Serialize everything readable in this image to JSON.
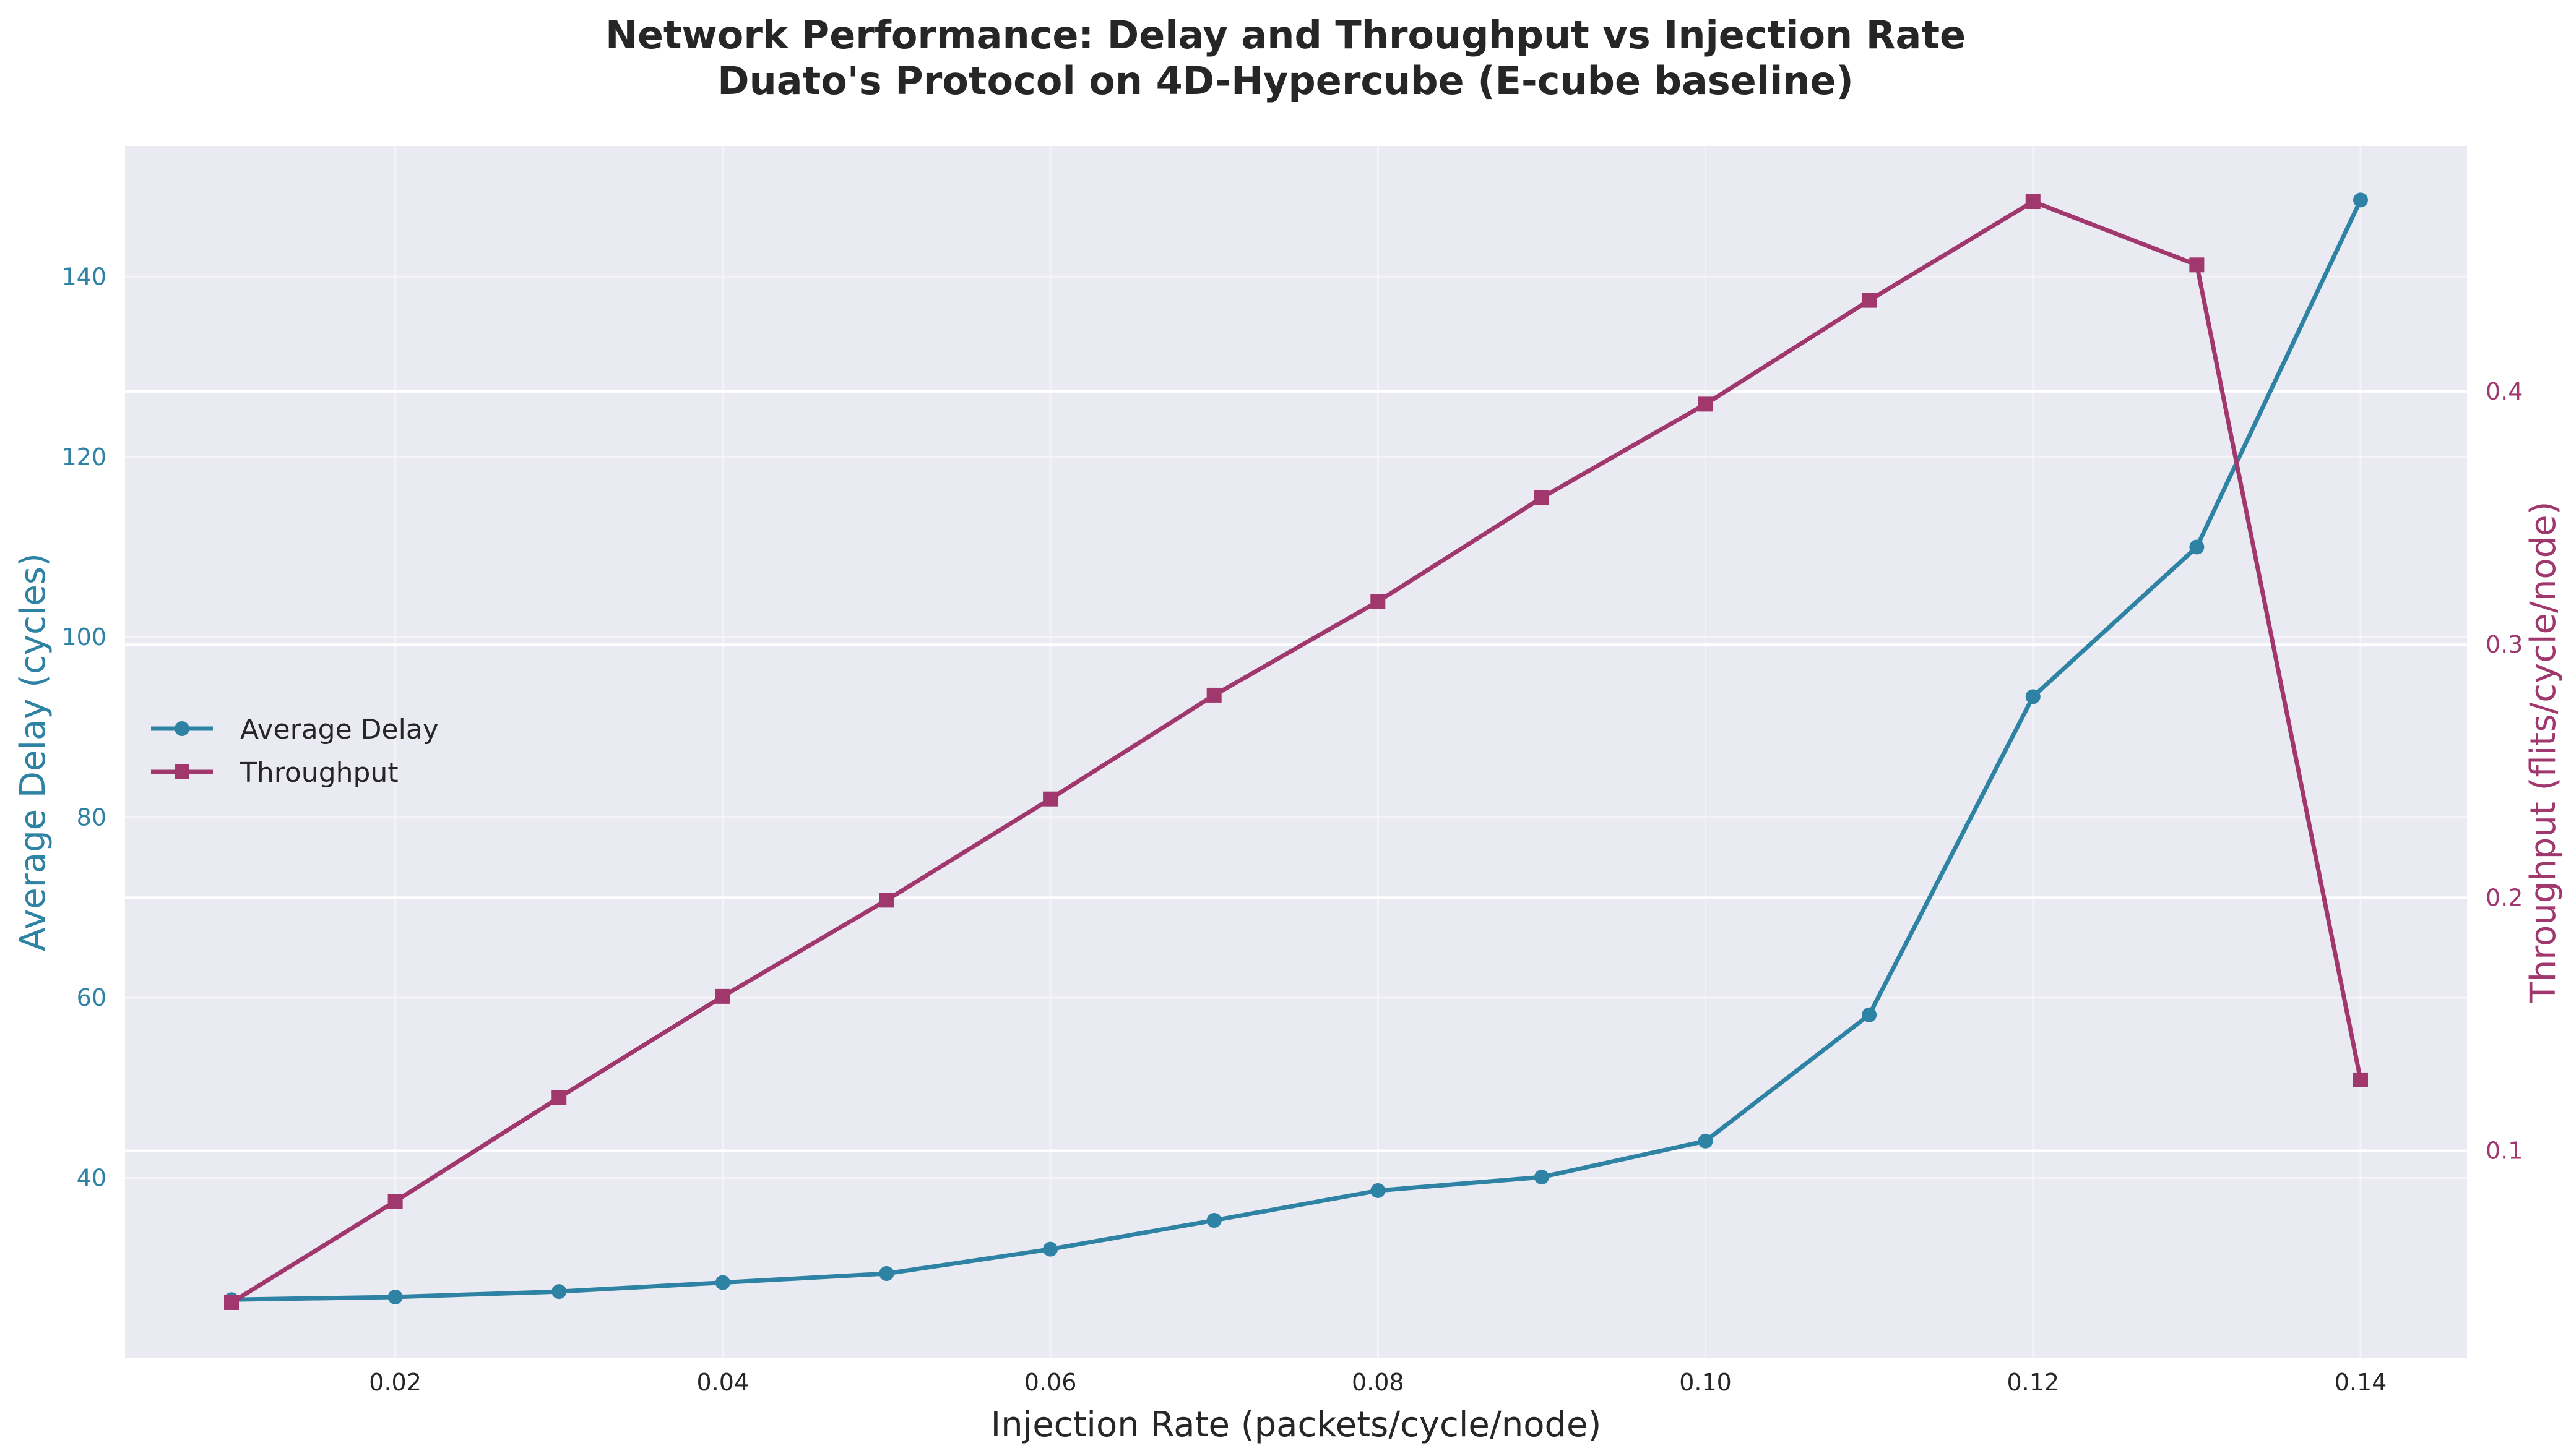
{
  "chart_data": {
    "type": "line",
    "title": "Network Performance: Delay and Throughput vs Injection Rate",
    "subtitle": "Duato's Protocol on 4D-Hypercube (E-cube baseline)",
    "xlabel": "Injection Rate (packets/cycle/node)",
    "ylabel_left": "Average Delay (cycles)",
    "ylabel_right": "Throughput (flits/cycle/node)",
    "x": [
      0.01,
      0.02,
      0.03,
      0.04,
      0.05,
      0.06,
      0.07,
      0.08,
      0.09,
      0.1,
      0.11,
      0.12,
      0.13,
      0.14
    ],
    "series": [
      {
        "name": "Average Delay",
        "axis": "left",
        "marker": "circle",
        "color": "#2e82a4",
        "values": [
          26.5,
          26.8,
          27.4,
          28.4,
          29.4,
          32.1,
          35.3,
          38.6,
          40.1,
          44.1,
          58.1,
          93.4,
          110.0,
          148.5
        ]
      },
      {
        "name": "Throughput",
        "axis": "right",
        "marker": "square",
        "color": "#a0386e",
        "values": [
          0.04,
          0.08,
          0.121,
          0.161,
          0.199,
          0.239,
          0.28,
          0.317,
          0.358,
          0.395,
          0.436,
          0.475,
          0.45,
          0.128
        ]
      }
    ],
    "xlim": [
      0.0035,
      0.1465
    ],
    "ylim_left": [
      20.0,
      154.5
    ],
    "ylim_right": [
      0.018,
      0.497
    ],
    "xticks": [
      "0.02",
      "0.04",
      "0.06",
      "0.08",
      "0.10",
      "0.12",
      "0.14"
    ],
    "xtick_values": [
      0.02,
      0.04,
      0.06,
      0.08,
      0.1,
      0.12,
      0.14
    ],
    "yticks_left": [
      "40",
      "60",
      "80",
      "100",
      "120",
      "140"
    ],
    "ytick_values_left": [
      40,
      60,
      80,
      100,
      120,
      140
    ],
    "yticks_right": [
      "0.1",
      "0.2",
      "0.3",
      "0.4"
    ],
    "ytick_values_right": [
      0.1,
      0.2,
      0.3,
      0.4
    ],
    "grid": true,
    "legend_position": "center-left",
    "colors": {
      "plot_background": "#eaeaf2",
      "grid": "#ffffff",
      "left_axis": "#2e82a4",
      "right_axis": "#a0386e",
      "text": "#262626"
    }
  }
}
